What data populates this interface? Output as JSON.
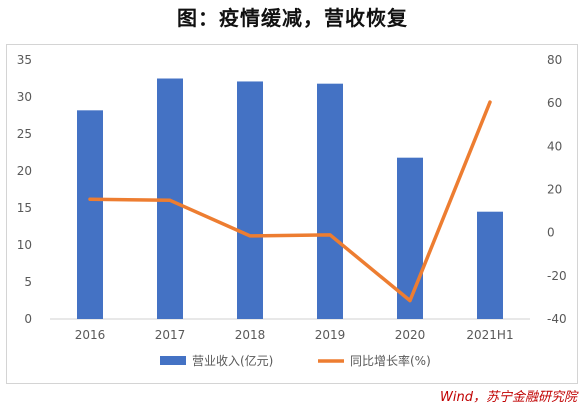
{
  "title": "图：疫情缓减，营收恢复",
  "source": "Wind，苏宁金融研究院",
  "chart_data": {
    "type": "bar",
    "categories": [
      "2016",
      "2017",
      "2018",
      "2019",
      "2020",
      "2021H1"
    ],
    "series": [
      {
        "name": "营业收入(亿元)",
        "type": "bar",
        "axis": "left",
        "values": [
          28.2,
          32.5,
          32.1,
          31.8,
          21.8,
          14.5
        ],
        "color": "#4472c4"
      },
      {
        "name": "同比增长率(%)",
        "type": "line",
        "axis": "right",
        "values": [
          15.5,
          15.0,
          -1.5,
          -1.0,
          -31.5,
          60.5
        ],
        "color": "#ed7d31"
      }
    ],
    "y_left": {
      "ylim": [
        0,
        35
      ],
      "ticks": [
        "0",
        "5",
        "10",
        "15",
        "20",
        "25",
        "30",
        "35"
      ]
    },
    "y_right": {
      "ylim": [
        -40,
        80
      ],
      "ticks": [
        "-40",
        "-20",
        "0",
        "20",
        "40",
        "60",
        "80"
      ]
    },
    "grid": false,
    "legend_position": "bottom"
  }
}
